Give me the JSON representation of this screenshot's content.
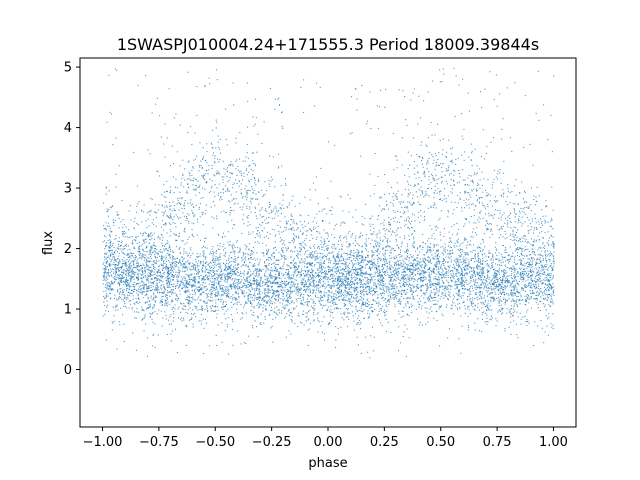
{
  "chart_data": {
    "type": "scatter",
    "title": "1SWASPJ010004.24+171555.3 Period 18009.39844s",
    "xlabel": "phase",
    "ylabel": "flux",
    "xlim": [
      -1.1,
      1.1
    ],
    "ylim": [
      -0.95,
      5.15
    ],
    "x_ticks": [
      -1.0,
      -0.75,
      -0.5,
      -0.25,
      0.0,
      0.25,
      0.5,
      0.75,
      1.0
    ],
    "x_tick_labels": [
      "−1.00",
      "−0.75",
      "−0.50",
      "−0.25",
      "0.00",
      "0.25",
      "0.50",
      "0.75",
      "1.00"
    ],
    "y_ticks": [
      0,
      1,
      2,
      3,
      4,
      5
    ],
    "y_tick_labels": [
      "0",
      "1",
      "2",
      "3",
      "4",
      "5"
    ],
    "grid": false,
    "marker_color": "#1f77b4",
    "series": [
      {
        "description": "phase-folded light curve; dense baseline band with two broad humps",
        "x": [
          -1.0,
          -0.9,
          -0.8,
          -0.7,
          -0.6,
          -0.5,
          -0.4,
          -0.3,
          -0.2,
          -0.1,
          0.0,
          0.1,
          0.2,
          0.3,
          0.4,
          0.5,
          0.6,
          0.7,
          0.8,
          0.9,
          1.0
        ],
        "baseline_center": [
          1.6,
          1.55,
          1.5,
          1.5,
          1.5,
          1.5,
          1.5,
          1.45,
          1.45,
          1.45,
          1.45,
          1.45,
          1.5,
          1.55,
          1.6,
          1.6,
          1.55,
          1.5,
          1.5,
          1.5,
          1.5
        ],
        "hump_center": [
          2.2,
          2.0,
          2.1,
          2.5,
          3.0,
          3.3,
          3.0,
          2.7,
          2.4,
          2.2,
          2.0,
          1.9,
          2.0,
          2.5,
          3.0,
          3.2,
          3.0,
          2.7,
          2.5,
          2.3,
          2.1
        ]
      }
    ]
  }
}
